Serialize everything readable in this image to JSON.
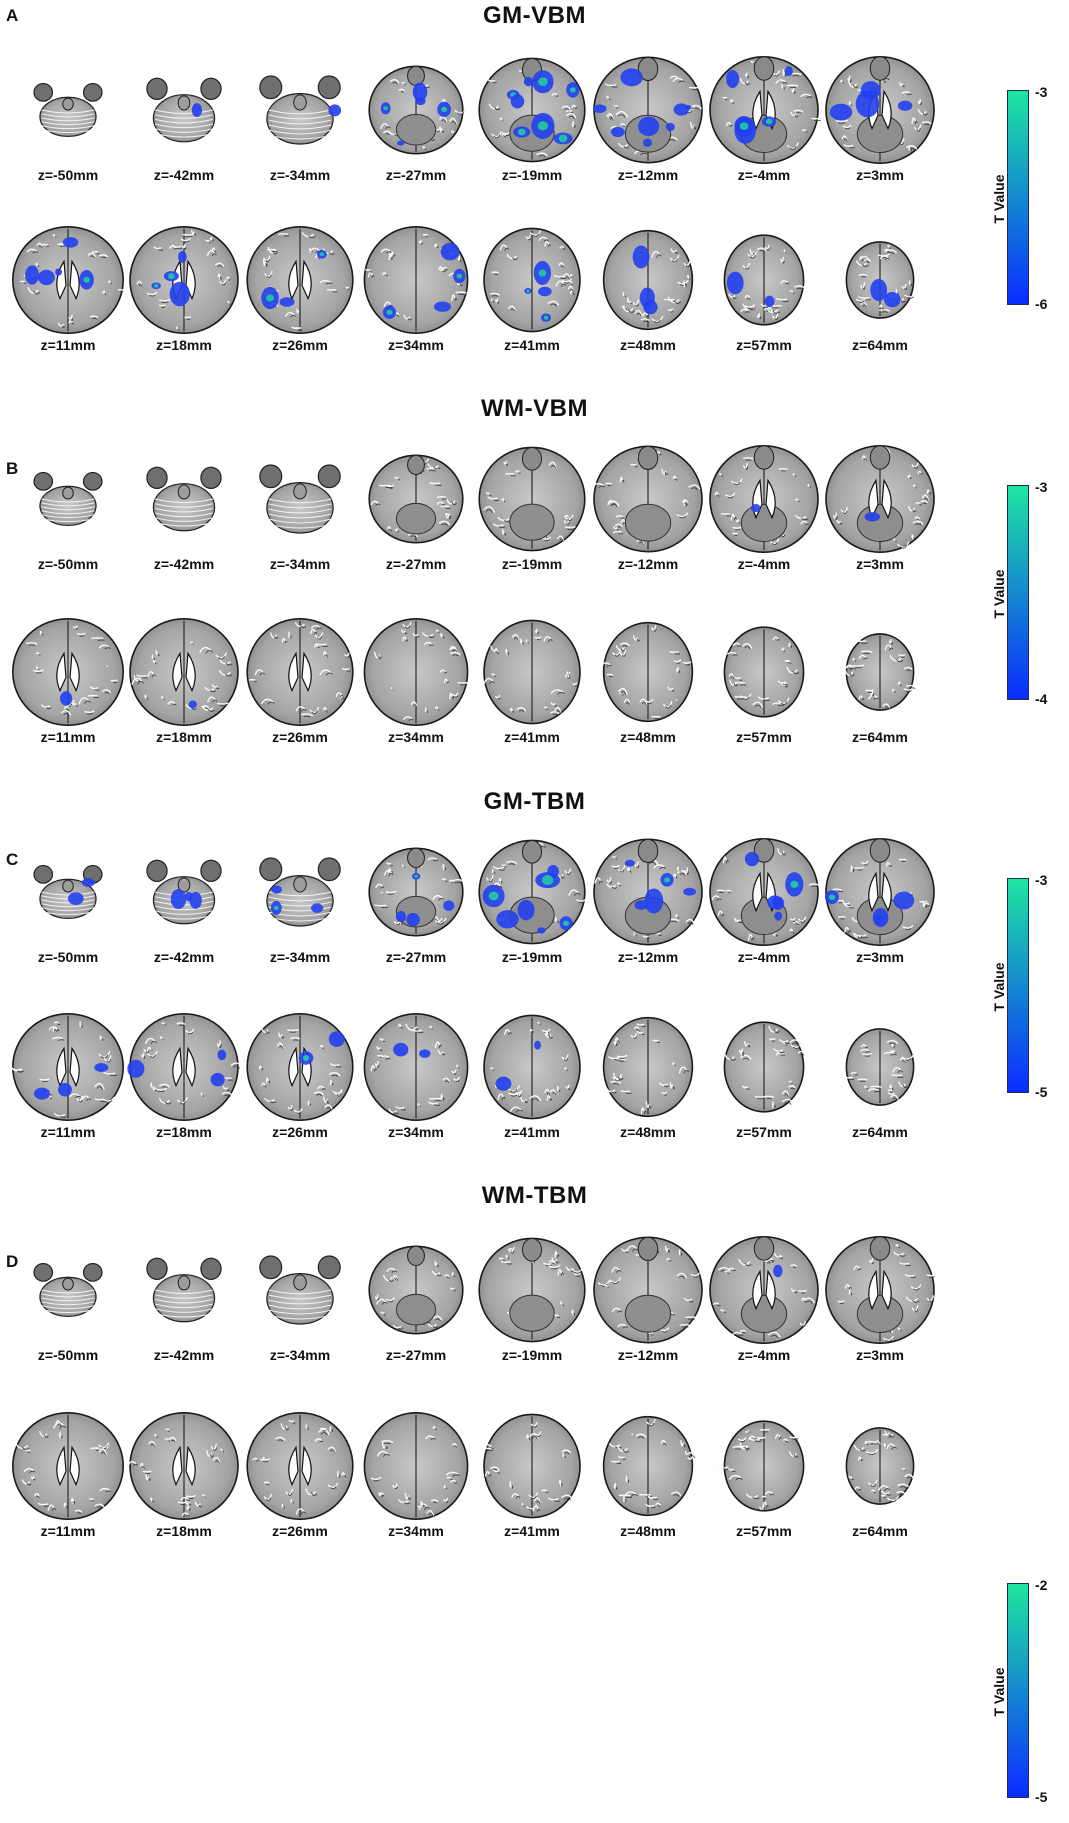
{
  "colors": {
    "colorbar_top": "#1ee6a0",
    "colorbar_bottom": "#0a2cff",
    "blob": "#2340f0",
    "blob_highlight": "#1fd39a"
  },
  "slice_labels": {
    "top_row": [
      "z=-50mm",
      "z=-42mm",
      "z=-34mm",
      "z=-27mm",
      "z=-19mm",
      "z=-12mm",
      "z=-4mm",
      "z=3mm"
    ],
    "bottom_row": [
      "z=11mm",
      "z=18mm",
      "z=26mm",
      "z=34mm",
      "z=41mm",
      "z=48mm",
      "z=57mm",
      "z=64mm"
    ]
  },
  "panels": [
    {
      "letter": "A",
      "title": "GM-VBM",
      "colorbar": {
        "label": "T Value",
        "top": "-3",
        "bottom": "-6"
      },
      "top_row_labels": [
        "z=-50mm",
        "z=-42mm",
        "z=-34mm",
        "z=-27mm",
        "z=-19mm",
        "z=-12mm",
        "z=-4mm",
        "z=3mm"
      ],
      "bottom_row_labels": [
        "z=11mm",
        "z=18mm",
        "z=26mm",
        "z=34mm",
        "z=41mm",
        "z=48mm",
        "z=57mm",
        "z=64mm"
      ],
      "activation_intensity": [
        0.05,
        0.15,
        0.1,
        0.55,
        0.9,
        0.85,
        0.7,
        0.6,
        0.6,
        0.45,
        0.35,
        0.45,
        0.4,
        0.3,
        0.25,
        0.2
      ]
    },
    {
      "letter": "B",
      "title": "WM-VBM",
      "colorbar": {
        "label": "T Value",
        "top": "-3",
        "bottom": "-4"
      },
      "top_row_labels": [
        "z=-50mm",
        "z=-42mm",
        "z=-34mm",
        "z=-27mm",
        "z=-19mm",
        "z=-12mm",
        "z=-4mm",
        "z=3mm"
      ],
      "bottom_row_labels": [
        "z=11mm",
        "z=18mm",
        "z=26mm",
        "z=34mm",
        "z=41mm",
        "z=48mm",
        "z=57mm",
        "z=64mm"
      ],
      "activation_intensity": [
        0,
        0,
        0,
        0,
        0,
        0,
        0.15,
        0.1,
        0.15,
        0.15,
        0.05,
        0.03,
        0,
        0,
        0,
        0
      ]
    },
    {
      "letter": "C",
      "title": "GM-TBM",
      "colorbar": {
        "label": "T Value",
        "top": "-3",
        "bottom": "-5"
      },
      "top_row_labels": [
        "z=-50mm",
        "z=-42mm",
        "z=-34mm",
        "z=-27mm",
        "z=-19mm",
        "z=-12mm",
        "z=-4mm",
        "z=3mm"
      ],
      "bottom_row_labels": [
        "z=11mm",
        "z=18mm",
        "z=26mm",
        "z=34mm",
        "z=41mm",
        "z=48mm",
        "z=57mm",
        "z=64mm"
      ],
      "activation_intensity": [
        0.2,
        0.3,
        0.35,
        0.45,
        0.8,
        0.6,
        0.6,
        0.45,
        0.35,
        0.3,
        0.25,
        0.25,
        0.25,
        0,
        0,
        0
      ]
    },
    {
      "letter": "D",
      "title": "WM-TBM",
      "colorbar": {
        "label": "T Value",
        "top": "-2",
        "bottom": "-5"
      },
      "top_row_labels": [
        "z=-50mm",
        "z=-42mm",
        "z=-34mm",
        "z=-27mm",
        "z=-19mm",
        "z=-12mm",
        "z=-4mm",
        "z=3mm"
      ],
      "bottom_row_labels": [
        "z=11mm",
        "z=18mm",
        "z=26mm",
        "z=34mm",
        "z=41mm",
        "z=48mm",
        "z=57mm",
        "z=64mm"
      ],
      "activation_intensity": [
        0,
        0,
        0,
        0,
        0,
        0,
        0.1,
        0.05,
        0.05,
        0.05,
        0.03,
        0,
        0,
        0,
        0,
        0
      ]
    }
  ]
}
